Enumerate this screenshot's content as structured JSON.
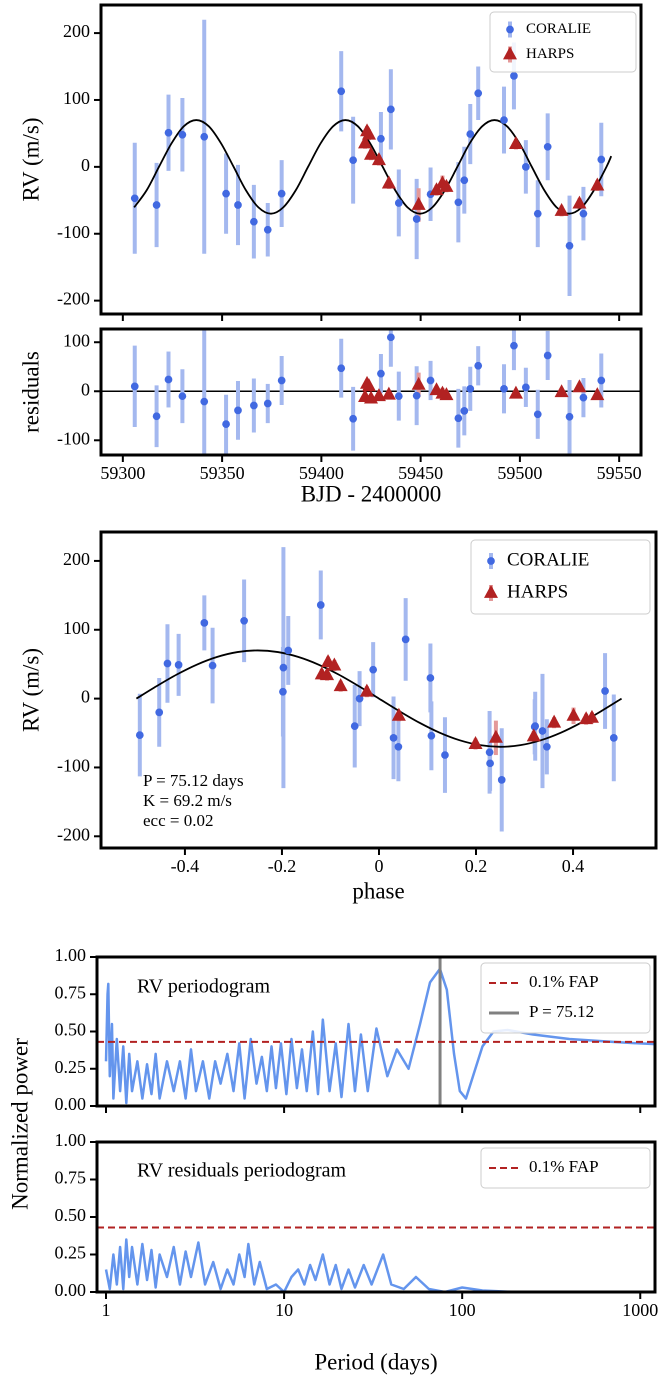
{
  "chart_data": [
    {
      "type": "scatter",
      "ylabel": "RV (m/s)",
      "xlim": [
        59289,
        59561
      ],
      "ylim": [
        -220,
        242
      ],
      "yticks": [
        -200,
        -100,
        0,
        100,
        200
      ],
      "legend": "upper right",
      "series": [
        {
          "name": "CORALIE",
          "color": "#4169e1",
          "errcolor": "#a4b8ef",
          "marker": "circle",
          "x": [
            59306,
            59317,
            59323,
            59330,
            59341,
            59352,
            59358,
            59366,
            59373,
            59380,
            59410,
            59416,
            59430,
            59435,
            59439,
            59448,
            59455,
            59469,
            59472,
            59475,
            59479,
            59492,
            59497,
            59503,
            59509,
            59514,
            59525,
            59532,
            59541
          ],
          "values": [
            -47,
            -57,
            51,
            48,
            45,
            -40,
            -57,
            -82,
            -94,
            -40,
            113,
            10,
            42,
            86,
            -54,
            -78,
            -41,
            -53,
            -20,
            49,
            110,
            70,
            136,
            0,
            -70,
            30,
            -118,
            -70,
            11
          ],
          "errors": [
            83,
            63,
            57,
            55,
            175,
            60,
            60,
            55,
            40,
            50,
            60,
            65,
            40,
            60,
            50,
            60,
            40,
            60,
            50,
            45,
            40,
            50,
            50,
            40,
            50,
            50,
            75,
            40,
            55
          ]
        },
        {
          "name": "HARPS",
          "color": "#b22222",
          "errcolor": "#e49999",
          "marker": "triangle",
          "x": [
            59422,
            59423,
            59424,
            59425,
            59429,
            59434,
            59449,
            59458,
            59461,
            59463,
            59498,
            59521,
            59530,
            59539
          ],
          "values": [
            35,
            53,
            48,
            18,
            10,
            -25,
            -57,
            -35,
            -25,
            -30,
            34,
            -66,
            -55,
            -28
          ],
          "errors": [
            8,
            8,
            8,
            8,
            8,
            8,
            25,
            8,
            12,
            8,
            8,
            8,
            8,
            8
          ]
        }
      ],
      "model": {
        "color": "#000000",
        "x": [
          59305.7,
          59312.0,
          59318.2,
          59324.5,
          59330.7,
          59337,
          59343.3,
          59349.5,
          59355.8,
          59362.0,
          59368.3,
          59374.6,
          59380.8,
          59387.1,
          59393.3,
          59399.6,
          59405.9,
          59412.1,
          59418.4,
          59424.6,
          59430.9,
          59437.2,
          59443.4,
          59449.7,
          59455.9,
          59462.2,
          59468.5,
          59474.7,
          59481.0,
          59487.2,
          59493.5,
          59499.8,
          59506.0,
          59512.3,
          59518.5,
          59524.8,
          59531.1,
          59537.3,
          59543.6,
          59546
        ],
        "values": [
          -60.6,
          -35,
          0,
          35,
          60.6,
          70,
          60.6,
          35,
          0,
          -35,
          -60.6,
          -70,
          -60.6,
          -35,
          0,
          35,
          60.6,
          70,
          60.6,
          35,
          0,
          -35,
          -60.6,
          -70,
          -60.6,
          -35,
          0,
          35,
          60.6,
          70,
          60.6,
          35,
          0,
          -35,
          -60.6,
          -70,
          -60.6,
          -35,
          0,
          16
        ]
      }
    },
    {
      "type": "scatter",
      "ylabel": "residuals",
      "xlabel": "BJD - 2400000",
      "xlim": [
        59289,
        59561
      ],
      "ylim": [
        -130,
        127
      ],
      "yticks": [
        -100,
        0,
        100
      ],
      "xticks": [
        59300,
        59350,
        59400,
        59450,
        59500,
        59550
      ],
      "baseline": 0,
      "series": [
        {
          "name": "CORALIE",
          "color": "#4169e1",
          "errcolor": "#a4b8ef",
          "marker": "circle",
          "x": [
            59306,
            59317,
            59323,
            59330,
            59341,
            59352,
            59358,
            59366,
            59373,
            59380,
            59410,
            59416,
            59430,
            59435,
            59439,
            59448,
            59455,
            59469,
            59472,
            59475,
            59479,
            59492,
            59497,
            59503,
            59509,
            59514,
            59525,
            59532,
            59541
          ],
          "values": [
            10,
            -51,
            24,
            -10,
            -21,
            -67,
            -39,
            -29,
            -25,
            22,
            47,
            -56,
            36,
            110,
            -10,
            -9,
            22,
            -55,
            -40,
            5,
            52,
            5,
            93,
            8,
            -47,
            73,
            -52,
            -13,
            22
          ],
          "errors": [
            83,
            63,
            57,
            55,
            175,
            60,
            60,
            55,
            40,
            50,
            60,
            65,
            40,
            60,
            50,
            60,
            40,
            60,
            50,
            45,
            40,
            50,
            50,
            40,
            50,
            50,
            75,
            40,
            55
          ]
        },
        {
          "name": "HARPS",
          "color": "#b22222",
          "errcolor": "#e49999",
          "marker": "triangle",
          "x": [
            59422,
            59423,
            59424,
            59425,
            59429,
            59434,
            59449,
            59458,
            59461,
            59463,
            59498,
            59521,
            59530,
            59539
          ],
          "values": [
            -12,
            15,
            10,
            -15,
            -10,
            -7,
            13,
            2,
            -5,
            -8,
            -5,
            -2,
            8,
            -8
          ],
          "errors": [
            8,
            8,
            8,
            8,
            8,
            8,
            25,
            8,
            12,
            8,
            8,
            8,
            8,
            8
          ]
        }
      ]
    },
    {
      "type": "scatter",
      "ylabel": "RV (m/s)",
      "xlabel": "phase",
      "xlim": [
        -0.573,
        0.571
      ],
      "ylim": [
        -217,
        242
      ],
      "yticks": [
        -200,
        -100,
        0,
        100,
        200
      ],
      "xticks": [
        -0.4,
        -0.2,
        0.0,
        0.2,
        0.4
      ],
      "legend": "upper right",
      "annotations": [
        "P = 75.12 days",
        "K = 69.2 m/s",
        "ecc = 0.02"
      ],
      "series": [
        {
          "name": "CORALIE",
          "color": "#4169e1",
          "errcolor": "#a4b8ef",
          "marker": "circle",
          "x": [
            0.337,
            0.484,
            -0.436,
            -0.343,
            -0.197,
            -0.05,
            0.03,
            0.136,
            0.229,
            0.322,
            -0.278,
            -0.198,
            -0.012,
            0.055,
            0.108,
            0.228,
            0.321,
            -0.493,
            -0.453,
            -0.413,
            -0.36,
            -0.187,
            -0.12,
            -0.04,
            0.04,
            0.106,
            0.253,
            0.346,
            0.466
          ],
          "values": [
            -47,
            -57,
            51,
            48,
            45,
            -40,
            -57,
            -82,
            -94,
            -40,
            113,
            10,
            42,
            86,
            -54,
            -78,
            -41,
            -53,
            -20,
            49,
            110,
            70,
            136,
            0,
            -70,
            30,
            -118,
            -70,
            11
          ],
          "errors": [
            83,
            63,
            57,
            55,
            175,
            60,
            60,
            55,
            40,
            50,
            60,
            65,
            40,
            60,
            50,
            60,
            40,
            60,
            50,
            45,
            40,
            50,
            50,
            40,
            50,
            50,
            75,
            40,
            55
          ]
        },
        {
          "name": "HARPS",
          "color": "#b22222",
          "errcolor": "#e49999",
          "marker": "triangle",
          "x": [
            -0.118,
            -0.105,
            -0.092,
            -0.079,
            -0.025,
            0.041,
            0.241,
            0.361,
            0.401,
            0.427,
            -0.107,
            0.199,
            0.319,
            0.439
          ],
          "values": [
            35,
            53,
            48,
            18,
            10,
            -25,
            -57,
            -35,
            -25,
            -30,
            34,
            -66,
            -55,
            -28
          ],
          "errors": [
            8,
            8,
            8,
            8,
            8,
            8,
            25,
            8,
            12,
            8,
            8,
            8,
            8,
            8
          ]
        }
      ],
      "model": {
        "color": "#000000",
        "x": [
          -0.5,
          -0.4583,
          -0.4167,
          -0.375,
          -0.3333,
          -0.2917,
          -0.25,
          -0.2083,
          -0.1667,
          -0.125,
          -0.0833,
          -0.0417,
          0,
          0.0417,
          0.0833,
          0.125,
          0.1667,
          0.2083,
          0.25,
          0.2917,
          0.3333,
          0.375,
          0.4167,
          0.4583,
          0.5
        ],
        "values": [
          0,
          18.1,
          35,
          49.5,
          60.6,
          67.6,
          70,
          67.6,
          60.6,
          49.5,
          35,
          18.1,
          0,
          -18.1,
          -35,
          -49.5,
          -60.6,
          -67.6,
          -70,
          -67.6,
          -60.6,
          -49.5,
          -35,
          -18.1,
          0
        ]
      }
    },
    {
      "type": "line",
      "text": "RV periodogram",
      "ylabel": "Normalized power",
      "xscale": "log",
      "xlim": [
        0.89,
        1210
      ],
      "ylim": [
        0,
        1
      ],
      "yticks": [
        {
          "value": 0,
          "label": "0.00"
        },
        {
          "value": 0.25,
          "label": "0.25"
        },
        {
          "value": 0.5,
          "label": "0.50"
        },
        {
          "value": 0.75,
          "label": "0.75"
        },
        {
          "value": 1,
          "label": "1.00"
        }
      ],
      "color": "#6495ed",
      "legend": "upper right",
      "x": [
        1.0,
        1.02,
        1.03,
        1.05,
        1.08,
        1.1,
        1.15,
        1.2,
        1.25,
        1.3,
        1.35,
        1.4,
        1.5,
        1.6,
        1.7,
        1.8,
        1.9,
        2.0,
        2.2,
        2.4,
        2.6,
        2.8,
        3.0,
        3.2,
        3.5,
        3.8,
        4.1,
        4.4,
        4.8,
        5.2,
        5.6,
        6.0,
        6.5,
        7.0,
        7.5,
        8.0,
        8.5,
        9.0,
        9.6,
        10.3,
        11,
        11.8,
        12.6,
        13.4,
        14.5,
        15.5,
        16.5,
        18,
        19.5,
        21,
        23,
        25,
        27,
        29.5,
        33,
        38,
        43,
        50,
        58,
        66,
        75,
        82,
        90,
        97,
        105,
        115,
        130,
        150,
        180,
        250,
        400,
        700,
        1000,
        1210
      ],
      "values": [
        0.3,
        0.75,
        0.82,
        0.2,
        0.55,
        0.05,
        0.45,
        0.1,
        0.4,
        0.02,
        0.35,
        0.1,
        0.3,
        0.05,
        0.28,
        0.08,
        0.35,
        0.05,
        0.3,
        0.1,
        0.3,
        0.05,
        0.38,
        0.1,
        0.3,
        0.05,
        0.3,
        0.15,
        0.35,
        0.1,
        0.42,
        0.05,
        0.45,
        0.15,
        0.33,
        0.1,
        0.4,
        0.12,
        0.42,
        0.08,
        0.45,
        0.12,
        0.38,
        0.1,
        0.5,
        0.08,
        0.58,
        0.1,
        0.42,
        0.06,
        0.55,
        0.1,
        0.48,
        0.1,
        0.52,
        0.2,
        0.38,
        0.25,
        0.55,
        0.83,
        0.92,
        0.78,
        0.35,
        0.1,
        0.05,
        0.2,
        0.4,
        0.5,
        0.51,
        0.48,
        0.45,
        0.43,
        0.42,
        0.415
      ],
      "hline": {
        "value": 0.43,
        "name": "0.1% FAP",
        "color": "#b22222"
      },
      "vline": {
        "value": 75.12,
        "name": "P = 75.12",
        "color": "#808080"
      }
    },
    {
      "type": "line",
      "text": "RV residuals periodogram",
      "xlabel": "Period (days)",
      "xscale": "log",
      "xlim": [
        0.89,
        1210
      ],
      "ylim": [
        0,
        1
      ],
      "yticks": [
        {
          "value": 0,
          "label": "0.00"
        },
        {
          "value": 0.25,
          "label": "0.25"
        },
        {
          "value": 0.5,
          "label": "0.50"
        },
        {
          "value": 0.75,
          "label": "0.75"
        },
        {
          "value": 1,
          "label": "1.00"
        }
      ],
      "xticks": [
        1,
        10,
        100,
        1000
      ],
      "color": "#6495ed",
      "legend": "upper right",
      "x": [
        1.0,
        1.05,
        1.1,
        1.15,
        1.2,
        1.25,
        1.3,
        1.35,
        1.4,
        1.5,
        1.6,
        1.7,
        1.8,
        1.9,
        2.0,
        2.2,
        2.4,
        2.6,
        2.8,
        3.0,
        3.3,
        3.6,
        4.0,
        4.4,
        4.8,
        5.2,
        5.6,
        6.0,
        6.3,
        6.8,
        7.3,
        8.0,
        9,
        10,
        11,
        12,
        13,
        14,
        15,
        16.5,
        18,
        19.5,
        21,
        23,
        25,
        28,
        31,
        36,
        40,
        47,
        55,
        65,
        80,
        100,
        130,
        200,
        1000,
        1210
      ],
      "values": [
        0.15,
        0.02,
        0.25,
        0.05,
        0.3,
        0.02,
        0.35,
        0.1,
        0.3,
        0.05,
        0.32,
        0.08,
        0.28,
        0.03,
        0.25,
        0.1,
        0.3,
        0.05,
        0.27,
        0.1,
        0.33,
        0.05,
        0.2,
        0.02,
        0.15,
        0.05,
        0.25,
        0.1,
        0.32,
        0.05,
        0.2,
        0.02,
        0.05,
        0.0,
        0.1,
        0.15,
        0.05,
        0.18,
        0.08,
        0.25,
        0.05,
        0.18,
        0.02,
        0.15,
        0.03,
        0.18,
        0.05,
        0.25,
        0.05,
        0.02,
        0.1,
        0.02,
        0.0,
        0.03,
        0.01,
        0.0,
        0.0,
        0.0
      ],
      "hline": {
        "value": 0.43,
        "name": "0.1% FAP",
        "color": "#b22222"
      }
    }
  ]
}
